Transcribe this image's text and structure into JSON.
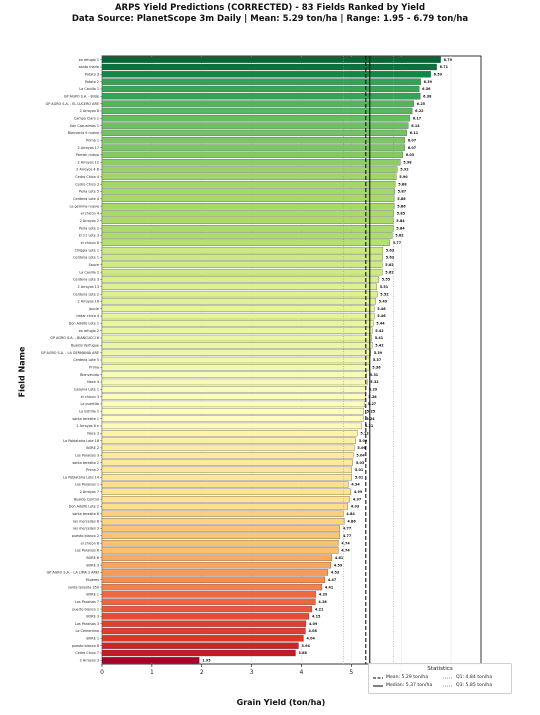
{
  "chart_data": {
    "type": "bar",
    "orientation": "horizontal",
    "title": "ARPS Yield Predictions (CORRECTED) - 83 Fields Ranked by Yield",
    "subtitle": "Data Source: PlanetScope 3m Daily | Mean: 5.29 ton/ha | Range: 1.95 - 6.79 ton/ha",
    "xlabel": "Grain Yield (ton/ha)",
    "ylabel": "Field Name",
    "xlim": [
      0,
      7.6
    ],
    "xticks": [
      "0",
      "1",
      "2",
      "3",
      "4",
      "5",
      "6",
      "7"
    ],
    "grid": "vertical",
    "legend_placement": "bottom-right",
    "colormap": "RdYlGn",
    "highlight_min_color": "#a50026",
    "categories": [
      "ex refugio 1",
      "santa maria",
      "Potato 3",
      "Potato 2",
      "La Cavilla 1",
      "GP AGRO S.A. - Bilde",
      "GP AGRO S.A. - EL LUCERO ARE",
      "2 Arroyos 8",
      "Campo Claro 1",
      "San Casualmas 1",
      "Bienvenis 9 nuevo",
      "Prima 1",
      "2 Arroyos 17",
      "Parrish nuevo",
      "2 Arroyos 12",
      "2 Arroyos 4 B",
      "Cedro Chico 4",
      "Cedro Chico 3",
      "Perla Lote 5",
      "Cerdena Lote 4",
      "La gemma nueva",
      "el chicon 4",
      "2 Arroyos 2",
      "Perla Lote 2",
      "El 21 Lote 3",
      "el chicon 8",
      "Chiqgia Lote 1",
      "Cerdena Lote 1",
      "Sauce",
      "La Cavilla 2",
      "Cerdena Lote 3",
      "2 Arroyos 13",
      "Cerdena Lote 2",
      "2 Arroyos 16",
      "Jaucle",
      "cedar chico 4",
      "Don Adolfo Lote 1",
      "ex refugio 2",
      "GP AGRO S.A. - BIANCUCCI 6",
      "Bualdo Verfugue",
      "GP AGRO S.A. - LA GERMANIA ARE",
      "Cerdena Lote 5",
      "Prima",
      "Bienvenido",
      "Nace 4",
      "Caseina Lote 1",
      "el chicon 3",
      "La puertita",
      "La Estrilla 1",
      "santa teresita 1",
      "2 Arroyos 6 n",
      "Nace 3",
      "La Poblatoria Lote 16",
      "BORE 2",
      "Los Paraisos 3",
      "santa teresita 2",
      "Prima 2",
      "La Poblatoria Lote 14",
      "Los Paraisos 1",
      "2 Arroyos 7",
      "Bualdo Control",
      "Don Adolfo Lote 2",
      "santa teresita 8",
      "las mercedes 8",
      "las mercedes 3",
      "puesto blanco 2",
      "el chicon 8",
      "Los Paraisos 6",
      "BORE 6",
      "BORE 3",
      "GP AGRO S.A. - LA LIMA 3 AREI",
      "Mujeres",
      "santa teresita 350",
      "BORE 1",
      "Los Paraisos 7",
      "puerto blanco 1",
      "BORE 3",
      "Los Paraisos 3",
      "La Cementina",
      "BORE 1",
      "puesto blanco 8",
      "Cedro Chico 7",
      "2 Arroyos 3"
    ],
    "values": [
      6.79,
      6.71,
      6.59,
      6.39,
      6.36,
      6.38,
      6.25,
      6.22,
      6.17,
      6.14,
      6.11,
      6.07,
      6.07,
      6.03,
      5.98,
      5.92,
      5.9,
      5.88,
      5.87,
      5.86,
      5.86,
      5.85,
      5.84,
      5.84,
      5.82,
      5.77,
      5.63,
      5.63,
      5.62,
      5.62,
      5.55,
      5.51,
      5.52,
      5.49,
      5.46,
      5.46,
      5.44,
      5.42,
      5.41,
      5.42,
      5.39,
      5.37,
      5.36,
      5.31,
      5.32,
      5.29,
      5.28,
      5.27,
      5.25,
      5.24,
      5.21,
      5.12,
      5.09,
      5.06,
      5.04,
      5.03,
      5.01,
      5.01,
      4.94,
      4.99,
      4.97,
      4.93,
      4.84,
      4.86,
      4.77,
      4.77,
      4.74,
      4.74,
      4.61,
      4.59,
      4.53,
      4.47,
      4.41,
      4.29,
      4.28,
      4.21,
      4.15,
      4.09,
      4.08,
      4.04,
      3.94,
      3.88,
      1.95
    ],
    "value_labels": [
      "6.79",
      "6.71",
      "6.59",
      "6.39",
      "6.36",
      "6.38",
      "6.25",
      "6.22",
      "6.17",
      "6.14",
      "6.11",
      "6.07",
      "6.07",
      "6.03",
      "5.98",
      "5.92",
      "5.90",
      "5.88",
      "5.87",
      "5.86",
      "5.86",
      "5.85",
      "5.84",
      "5.84",
      "5.82",
      "5.77",
      "5.63",
      "5.63",
      "5.62",
      "5.62",
      "5.55",
      "5.51",
      "5.52",
      "5.49",
      "5.46",
      "5.46",
      "5.44",
      "5.42",
      "5.41",
      "5.42",
      "5.39",
      "5.37",
      "5.36",
      "5.31",
      "5.32",
      "5.29",
      "5.28",
      "5.27",
      "5.25",
      "5.24",
      "5.21",
      "5.12",
      "5.09",
      "5.06",
      "5.04",
      "5.03",
      "5.01",
      "5.01",
      "4.94",
      "4.99",
      "4.97",
      "4.93",
      "4.84",
      "4.86",
      "4.77",
      "4.77",
      "4.74",
      "4.74",
      "4.61",
      "4.59",
      "4.53",
      "4.47",
      "4.41",
      "4.29",
      "4.28",
      "4.21",
      "4.15",
      "4.09",
      "4.08",
      "4.04",
      "3.94",
      "3.88",
      "1.95"
    ],
    "reference_lines": [
      {
        "label": "Mean: 5.29 ton/ha",
        "value": 5.29,
        "style": "dashed",
        "color": "#000000"
      },
      {
        "label": "Median: 5.37 ton/ha",
        "value": 5.37,
        "style": "solid",
        "color": "#000000"
      },
      {
        "label": "Q1: 4.84 ton/ha",
        "value": 4.84,
        "style": "dotted",
        "color": "#9a9a9a"
      },
      {
        "label": "Q3: 5.85 ton/ha",
        "value": 5.85,
        "style": "dotted",
        "color": "#9a9a9a"
      }
    ],
    "legend_title": "Statistics"
  }
}
